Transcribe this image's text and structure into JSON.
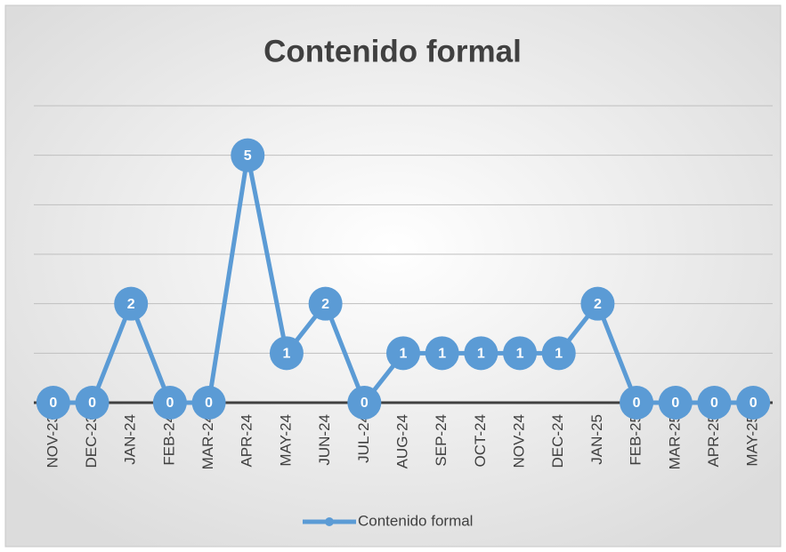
{
  "chart_data": {
    "type": "line",
    "title": "Contenido formal",
    "categories": [
      "NOV-23",
      "DEC-23",
      "JAN-24",
      "FEB-24",
      "MAR-24",
      "APR-24",
      "MAY-24",
      "JUN-24",
      "JUL-24",
      "AUG-24",
      "SEP-24",
      "OCT-24",
      "NOV-24",
      "DEC-24",
      "JAN-25",
      "FEB-25",
      "MAR-25",
      "APR-25",
      "MAY-25"
    ],
    "series": [
      {
        "name": "Contenido formal",
        "color": "#5b9bd5",
        "values": [
          0,
          0,
          2,
          0,
          0,
          5,
          1,
          2,
          0,
          1,
          1,
          1,
          1,
          1,
          2,
          0,
          0,
          0,
          0
        ]
      }
    ],
    "ylim": [
      0,
      6
    ],
    "yticks": [
      0,
      1,
      2,
      3,
      4,
      5,
      6
    ],
    "grid": true,
    "legend": "bottom"
  }
}
